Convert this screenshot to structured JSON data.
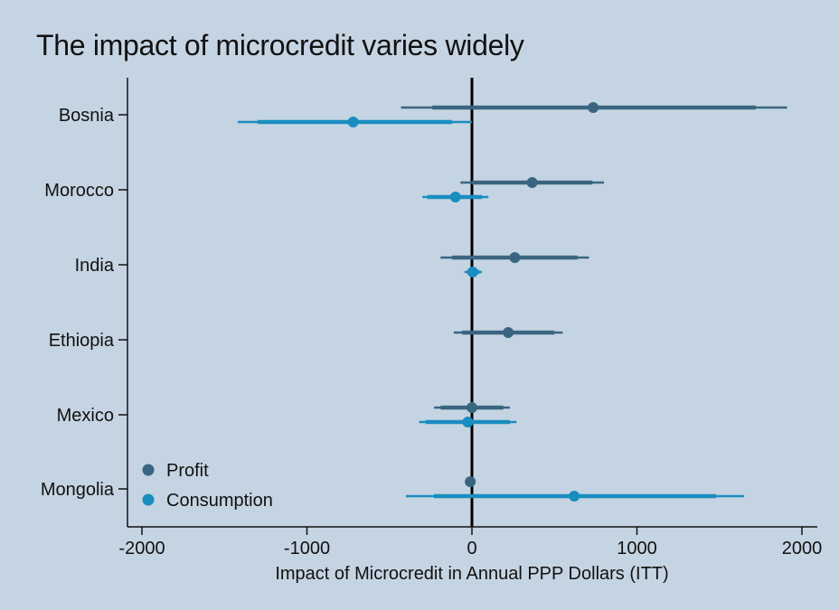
{
  "chart_data": {
    "type": "scatter",
    "subtype": "coefficient-plot-with-confidence-intervals",
    "title": "The impact of microcredit varies widely",
    "xlabel": "Impact of Microcredit in Annual PPP Dollars (ITT)",
    "ylabel": "",
    "xlim": [
      -2000,
      2000
    ],
    "xticks": [
      -2000,
      -1000,
      0,
      1000,
      2000
    ],
    "xtick_labels": [
      "-2000",
      "-1000",
      "0",
      "1000",
      "2000"
    ],
    "grid": false,
    "reference_line": 0,
    "legend": {
      "placement": "bottom-left"
    },
    "categories": [
      "Bosnia",
      "Morocco",
      "India",
      "Ethiopia",
      "Mexico",
      "Mongolia"
    ],
    "series": [
      {
        "name": "Profit",
        "color": "#3a6581",
        "points": [
          {
            "category": "Bosnia",
            "estimate": 735,
            "ci_inner": [
              -240,
              1720
            ],
            "ci_outer": [
              -430,
              1910
            ]
          },
          {
            "category": "Morocco",
            "estimate": 365,
            "ci_inner": [
              0,
              730
            ],
            "ci_outer": [
              -70,
              800
            ]
          },
          {
            "category": "India",
            "estimate": 260,
            "ci_inner": [
              -120,
              640
            ],
            "ci_outer": [
              -190,
              710
            ]
          },
          {
            "category": "Ethiopia",
            "estimate": 220,
            "ci_inner": [
              -60,
              500
            ],
            "ci_outer": [
              -110,
              550
            ]
          },
          {
            "category": "Mexico",
            "estimate": 0,
            "ci_inner": [
              -190,
              190
            ],
            "ci_outer": [
              -230,
              230
            ]
          },
          {
            "category": "Mongolia",
            "estimate": -10,
            "ci_inner": null,
            "ci_outer": null
          }
        ]
      },
      {
        "name": "Consumption",
        "color": "#1a8dc0",
        "points": [
          {
            "category": "Bosnia",
            "estimate": -720,
            "ci_inner": [
              -1300,
              -120
            ],
            "ci_outer": [
              -1420,
              0
            ]
          },
          {
            "category": "Morocco",
            "estimate": -100,
            "ci_inner": [
              -270,
              60
            ],
            "ci_outer": [
              -300,
              100
            ]
          },
          {
            "category": "India",
            "estimate": 5,
            "ci_inner": [
              -30,
              45
            ],
            "ci_outer": [
              -45,
              60
            ]
          },
          {
            "category": "Ethiopia",
            "estimate": null,
            "ci_inner": null,
            "ci_outer": null
          },
          {
            "category": "Mexico",
            "estimate": -25,
            "ci_inner": [
              -280,
              230
            ],
            "ci_outer": [
              -320,
              270
            ]
          },
          {
            "category": "Mongolia",
            "estimate": 620,
            "ci_inner": [
              -230,
              1480
            ],
            "ci_outer": [
              -400,
              1650
            ]
          }
        ]
      }
    ]
  }
}
